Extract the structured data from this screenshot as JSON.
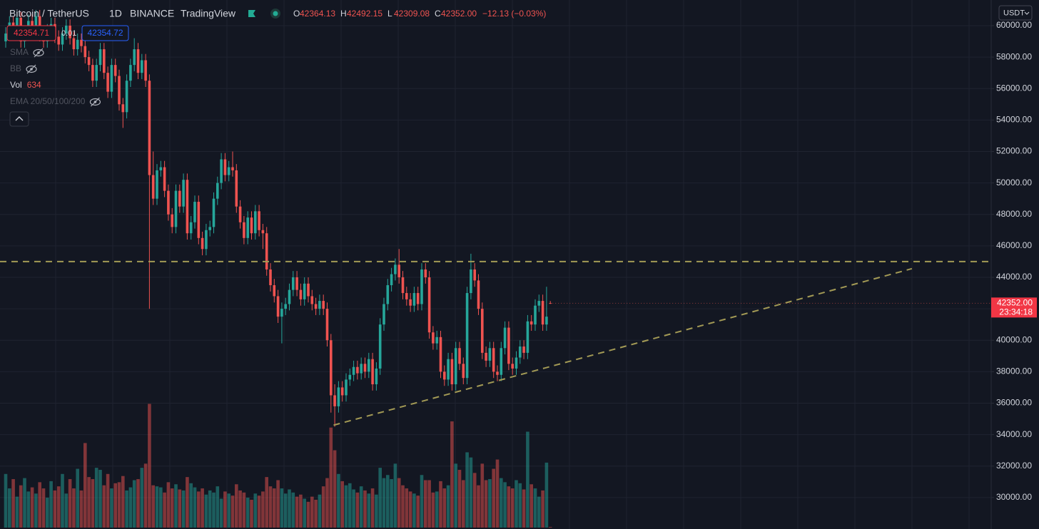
{
  "chart_data": {
    "type": "candlestick",
    "symbol": "Bitcoin / TetherUS",
    "interval": "1D",
    "exchange": "BINANCE",
    "source": "TradingView",
    "currency": "USDT",
    "legend": [
      {
        "label": "O",
        "value": "42364.13"
      },
      {
        "label": "H",
        "value": "42492.15"
      },
      {
        "label": "L",
        "value": "42309.08"
      },
      {
        "label": "C",
        "value": "42352.00"
      }
    ],
    "change": "−12.13 (−0.03%)",
    "bid": "42354.71",
    "spread": "0.01",
    "ask": "42354.72",
    "indicators": [
      {
        "name": "SMA",
        "hidden": true
      },
      {
        "name": "BB",
        "hidden": true
      },
      {
        "name": "Vol",
        "hidden": false
      },
      {
        "name": "EMA 20/50/100/200",
        "hidden": true
      }
    ],
    "last_price_label": "42352.00",
    "countdown": "23:34:18",
    "up_color": "#26a69a",
    "down_color": "#ef5350",
    "grid": true,
    "ylim": [
      28000,
      61630
    ],
    "yticks": [
      {
        "value": 30000,
        "label": "30000.00"
      },
      {
        "value": 32000,
        "label": "32000.00"
      },
      {
        "value": 34000,
        "label": "34000.00"
      },
      {
        "value": 36000,
        "label": "36000.00"
      },
      {
        "value": 38000,
        "label": "38000.00"
      },
      {
        "value": 40000,
        "label": "40000.00"
      },
      {
        "value": 42000,
        "label": "42000.00"
      },
      {
        "value": 44000,
        "label": "44000.00"
      },
      {
        "value": 46000,
        "label": "46000.00"
      },
      {
        "value": 48000,
        "label": "48000.00"
      },
      {
        "value": 50000,
        "label": "50000.00"
      },
      {
        "value": 52000,
        "label": "52000.00"
      },
      {
        "value": 54000,
        "label": "54000.00"
      },
      {
        "value": 56000,
        "label": "56000.00"
      },
      {
        "value": 58000,
        "label": "58000.00"
      },
      {
        "value": 60000,
        "label": "60000.00"
      }
    ],
    "vlim": [
      0,
      130000
    ],
    "horizontal_line": {
      "value": 45000,
      "color": "#a39a55"
    },
    "trend_line": {
      "x": [
        86.7,
        239.6
      ],
      "y": [
        34600,
        44550
      ],
      "color": "#a39a55"
    },
    "open": [
      59000,
      59500,
      60200,
      59800,
      60500,
      59000,
      59600,
      60300,
      59900,
      60600,
      59400,
      59000,
      59700,
      60100,
      59300,
      58800,
      59500,
      60000,
      59200,
      58500,
      59100,
      58700,
      58000,
      57500,
      56500,
      57500,
      58500,
      57000,
      55800,
      57500,
      56800,
      55000,
      54500,
      56500,
      57500,
      58500,
      57000,
      57800,
      56500,
      50500,
      49000,
      50800,
      51000,
      49500,
      48000,
      47200,
      49500,
      48500,
      50200,
      46800,
      47500,
      48800,
      46500,
      45800,
      47000,
      47200,
      49000,
      50000,
      51500,
      50500,
      51000,
      50800,
      48500,
      47500,
      46500,
      47800,
      46800,
      48200,
      47000,
      46800,
      44500,
      43500,
      42800,
      41500,
      42000,
      42300,
      43200,
      44000,
      43200,
      42600,
      43600,
      42800,
      42300,
      42000,
      42500,
      42000,
      40000,
      36500,
      35800,
      37000,
      36500,
      37500,
      37800,
      38300,
      37900,
      38500,
      38000,
      38800,
      37200,
      38200,
      41000,
      42300,
      43500,
      44200,
      44800,
      44000,
      43000,
      42600,
      42200,
      43000,
      42300,
      44500,
      44000,
      40500,
      39800,
      40200,
      38000,
      37500,
      38800,
      37200,
      39500,
      38500,
      37600,
      43000,
      44500,
      43800,
      42000,
      39200,
      38700,
      39500,
      38000,
      37800,
      39500,
      40800,
      38500,
      38200,
      38900,
      39600,
      39200,
      41200,
      41000,
      42200,
      42500,
      41000,
      42364.13
    ],
    "high": [
      59900,
      60600,
      60600,
      60900,
      60900,
      60000,
      60700,
      60700,
      61000,
      61000,
      59800,
      60100,
      60500,
      60500,
      59700,
      59900,
      60400,
      60400,
      59600,
      59500,
      59500,
      59100,
      58400,
      57900,
      57900,
      58900,
      58900,
      57400,
      57900,
      57900,
      57200,
      55400,
      56900,
      57900,
      59200,
      58900,
      58200,
      58200,
      56900,
      52000,
      51200,
      51400,
      51400,
      49900,
      48400,
      49900,
      49900,
      50600,
      50600,
      47900,
      49200,
      49200,
      46900,
      47400,
      47600,
      49400,
      50400,
      51900,
      51900,
      51400,
      52000,
      51200,
      48900,
      47900,
      48200,
      48200,
      48600,
      48600,
      47400,
      47200,
      44900,
      43900,
      43200,
      42400,
      42700,
      43600,
      44400,
      44400,
      43600,
      44000,
      44000,
      43200,
      42700,
      42900,
      42900,
      42400,
      40400,
      37200,
      37400,
      37400,
      37900,
      38200,
      38700,
      38700,
      38900,
      38900,
      39200,
      39200,
      38600,
      41400,
      42700,
      43900,
      44600,
      45200,
      45800,
      44400,
      43400,
      43000,
      43400,
      43400,
      44900,
      44900,
      44400,
      40900,
      40600,
      40600,
      38400,
      39200,
      39200,
      39900,
      39900,
      38900,
      43400,
      45500,
      44900,
      44200,
      42400,
      39600,
      39900,
      39900,
      38400,
      39900,
      41200,
      41200,
      38900,
      39300,
      40000,
      40000,
      41600,
      41600,
      42600,
      42900,
      42900,
      43400,
      42492.15
    ],
    "low": [
      58600,
      59100,
      59400,
      59400,
      58600,
      58600,
      59200,
      59500,
      59500,
      59000,
      58600,
      58600,
      59300,
      58900,
      58400,
      58400,
      59100,
      58800,
      58100,
      58100,
      58300,
      57600,
      57100,
      56100,
      56100,
      57100,
      56600,
      55400,
      55400,
      56400,
      54600,
      53500,
      54100,
      56100,
      57100,
      56600,
      56600,
      56100,
      42000,
      48600,
      48600,
      50400,
      49100,
      47600,
      46800,
      46800,
      48100,
      48100,
      46400,
      46400,
      47100,
      46100,
      45400,
      45400,
      46600,
      46800,
      48600,
      49600,
      50100,
      50100,
      50400,
      48100,
      47100,
      46100,
      46100,
      46400,
      46400,
      46600,
      45800,
      44100,
      43100,
      42400,
      41100,
      39800,
      41600,
      41900,
      42800,
      42800,
      42200,
      42200,
      42400,
      41900,
      41600,
      41600,
      41600,
      39600,
      35400,
      34500,
      35400,
      36100,
      36100,
      37100,
      37400,
      37500,
      37500,
      37600,
      37600,
      36800,
      36800,
      37800,
      40600,
      41900,
      43100,
      43800,
      43600,
      42600,
      42200,
      41800,
      41800,
      41900,
      41900,
      43600,
      40100,
      39400,
      39400,
      37600,
      37100,
      37100,
      36800,
      36800,
      38100,
      37200,
      37200,
      42600,
      43400,
      41600,
      38800,
      38300,
      38300,
      37600,
      37400,
      37400,
      39100,
      38100,
      37800,
      37800,
      38500,
      38800,
      38800,
      40600,
      40600,
      41800,
      40600,
      40600,
      42309.08
    ],
    "close": [
      59500,
      60200,
      59800,
      60500,
      59000,
      59600,
      60300,
      59900,
      60600,
      59400,
      59000,
      59700,
      60100,
      59300,
      58800,
      59500,
      60000,
      59200,
      58500,
      59100,
      58700,
      58000,
      57500,
      56500,
      57500,
      58500,
      57000,
      55800,
      57500,
      56800,
      55000,
      54500,
      56500,
      57500,
      58500,
      57000,
      57800,
      56500,
      50500,
      49000,
      50800,
      51000,
      49500,
      48000,
      47200,
      49500,
      48500,
      50200,
      46800,
      47500,
      48800,
      46500,
      45800,
      47000,
      47200,
      49000,
      50000,
      51500,
      50500,
      51000,
      50800,
      48500,
      47500,
      46500,
      47800,
      46800,
      48200,
      47000,
      46800,
      44500,
      43500,
      42800,
      41500,
      42000,
      42300,
      43200,
      44000,
      43200,
      42600,
      43600,
      42800,
      42300,
      42000,
      42500,
      42000,
      40000,
      36500,
      35800,
      37000,
      36500,
      37500,
      37800,
      38300,
      37900,
      38500,
      38000,
      38800,
      37200,
      38200,
      41000,
      42300,
      43500,
      44200,
      44800,
      44000,
      43000,
      42600,
      42200,
      43000,
      42300,
      44500,
      44000,
      40500,
      39800,
      40200,
      38000,
      37500,
      38800,
      37200,
      39500,
      38500,
      37600,
      43000,
      44500,
      43800,
      42000,
      39200,
      38700,
      39500,
      38000,
      37800,
      39500,
      40800,
      38500,
      38200,
      38900,
      39600,
      39200,
      41200,
      41000,
      42200,
      42500,
      41000,
      41500,
      42352
    ],
    "volume": [
      52000,
      38000,
      47000,
      30000,
      41000,
      48000,
      35000,
      39000,
      33000,
      44000,
      38000,
      29000,
      45000,
      36000,
      40000,
      52000,
      33000,
      47000,
      38000,
      57000,
      36000,
      82000,
      49000,
      47000,
      58000,
      56000,
      41000,
      52000,
      38000,
      43000,
      44000,
      50000,
      36000,
      39000,
      46000,
      47000,
      58000,
      62000,
      120000,
      41000,
      40000,
      39000,
      34000,
      44000,
      38000,
      42000,
      37000,
      36000,
      49000,
      43000,
      39000,
      35000,
      38000,
      32000,
      36000,
      34000,
      40000,
      28000,
      35000,
      33000,
      31000,
      42000,
      36000,
      34000,
      29000,
      27000,
      33000,
      31000,
      35000,
      49000,
      40000,
      38000,
      46000,
      38000,
      33000,
      37000,
      34000,
      30000,
      32000,
      28000,
      25000,
      30000,
      27000,
      32000,
      40000,
      48000,
      97000,
      75000,
      52000,
      45000,
      41000,
      43000,
      37000,
      34000,
      40000,
      36000,
      33000,
      38000,
      32000,
      58000,
      48000,
      51000,
      47000,
      62000,
      48000,
      41000,
      38000,
      35000,
      33000,
      31000,
      51000,
      46000,
      46000,
      34000,
      35000,
      45000,
      38000,
      41000,
      103000,
      62000,
      56000,
      46000,
      73000,
      68000,
      53000,
      41000,
      62000,
      46000,
      47000,
      57000,
      66000,
      48000,
      44000,
      40000,
      38000,
      46000,
      43000,
      37000,
      93000,
      42000,
      38000,
      30000,
      36000,
      63000,
      634
    ]
  }
}
